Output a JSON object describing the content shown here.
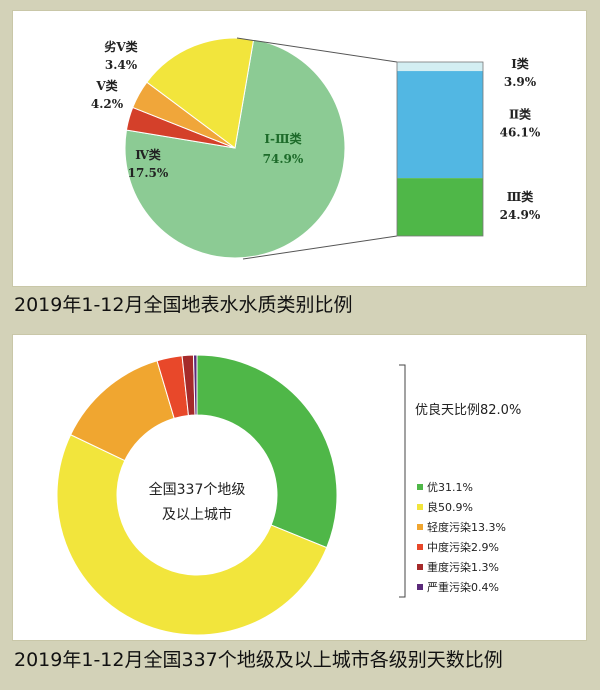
{
  "chart_data": [
    {
      "type": "pie",
      "caption": "2019年1-12月全国地表水水质类别比例",
      "slices": [
        {
          "name": "Ⅰ-Ⅲ类",
          "value": 74.9,
          "label": "74.9%",
          "color": "#8ccb94"
        },
        {
          "name": "劣Ⅴ类",
          "value": 3.4,
          "label": "3.4%",
          "color": "#d4402a"
        },
        {
          "name": "Ⅴ类",
          "value": 4.2,
          "label": "4.2%",
          "color": "#f0a63a"
        },
        {
          "name": "Ⅳ类",
          "value": 17.5,
          "label": "17.5%",
          "color": "#f2e53c"
        }
      ],
      "breakdown": {
        "type": "stacked-bar",
        "segments": [
          {
            "name": "Ⅰ类",
            "value": 3.9,
            "label": "3.9%",
            "color": "#d3eef2"
          },
          {
            "name": "Ⅱ类",
            "value": 46.1,
            "label": "46.1%",
            "color": "#52b7e3"
          },
          {
            "name": "Ⅲ类",
            "value": 24.9,
            "label": "24.9%",
            "color": "#4fb748"
          }
        ]
      }
    },
    {
      "type": "donut",
      "caption": "2019年1-12月全国337个地级及以上城市各级别天数比例",
      "center_text": [
        "全国337个地级",
        "及以上城市"
      ],
      "bracket_label": "优良天比例82.0%",
      "slices": [
        {
          "name": "优",
          "value": 31.1,
          "legend": "优31.1%",
          "color": "#4fb748"
        },
        {
          "name": "良",
          "value": 50.9,
          "legend": "良50.9%",
          "color": "#f2e53c"
        },
        {
          "name": "轻度污染",
          "value": 13.3,
          "legend": "轻度污染13.3%",
          "color": "#f0a630"
        },
        {
          "name": "中度污染",
          "value": 2.9,
          "legend": "中度污染2.9%",
          "color": "#e8482a"
        },
        {
          "name": "重度污染",
          "value": 1.3,
          "legend": "重度污染1.3%",
          "color": "#a52a2a"
        },
        {
          "name": "严重污染",
          "value": 0.4,
          "legend": "严重污染0.4%",
          "color": "#5b2a7a"
        }
      ]
    }
  ]
}
